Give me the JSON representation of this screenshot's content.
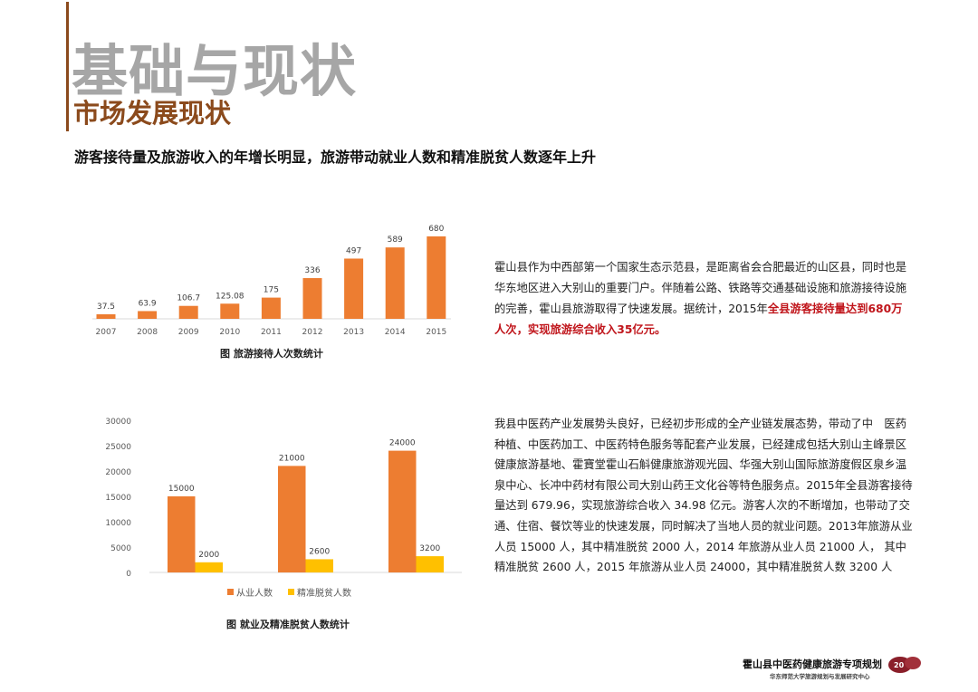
{
  "header": {
    "title": "基础与现状",
    "subtitle": "市场发展现状",
    "headline": "游客接待量及旅游收入的年增长明显，旅游带动就业人数和精准脱贫人数逐年上升"
  },
  "paragraph1": {
    "text": "霍山县作为中西部第一个国家生态示范县，是距离省会合肥最近的山区县，同时也是华东地区进入大别山的重要门户。伴随着公路、铁路等交通基础设施和旅游接待设施的完善，霍山县旅游取得了快速发展。据统计，2015年",
    "highlight": "全县游客接待量达到680万人次，实现旅游综合收入35亿元",
    "end": "。"
  },
  "paragraph2": {
    "text": "我县中医药产业发展势头良好，已经初步形成的全产业链发展态势，带动了中　医药种植、中医药加工、中医药特色服务等配套产业发展，已经建成包括大别山主峰景区健康旅游基地、霍寶堂霍山石斛健康旅游观光园、华强大别山国际旅游度假区泉乡温泉中心、长冲中药材有限公司大别山药王文化谷等特色服务点。2015年全县游客接待量达到 679.96，实现旅游综合收入 34.98 亿元。游客人次的不断增加，也带动了交通、住宿、餐饮等业的快速发展，同时解决了当地人员的就业问题。2013年旅游从业人员 15000 人，其中精准脱贫 2000 人，2014 年旅游从业人员 21000 人， 其中精准脱贫 2600 人，2015 年旅游从业人员 24000，其中精准脱贫人数 3200 人"
  },
  "footer": {
    "title": "霍山县中医药健康旅游专项规划",
    "subtitle": "华东师范大学旅游规划与发展研究中心",
    "logo_text": "20"
  },
  "chart_data": [
    {
      "type": "bar",
      "title": "图 旅游接待人次数统计",
      "categories": [
        "2007",
        "2008",
        "2009",
        "2010",
        "2011",
        "2012",
        "2013",
        "2014",
        "2015"
      ],
      "values": [
        37.5,
        63.9,
        106.7,
        125.08,
        175,
        336,
        497,
        589,
        680
      ],
      "value_labels": [
        "37.5",
        "63.9",
        "106.7",
        "125.08",
        "175",
        "336",
        "497",
        "589",
        "680"
      ],
      "ylim": [
        0,
        680
      ],
      "y_axis_visible": false,
      "grid": false,
      "color": "#ed7d31"
    },
    {
      "type": "bar",
      "title": "图 就业及精准脱贫人数统计",
      "categories": [
        "",
        "",
        ""
      ],
      "series": [
        {
          "name": "从业人数",
          "values": [
            15000,
            21000,
            24000
          ],
          "color": "#ed7d31"
        },
        {
          "name": "精准脱贫人数",
          "values": [
            2000,
            2600,
            3200
          ],
          "color": "#ffc000"
        }
      ],
      "yticks": [
        "0",
        "5000",
        "10000",
        "15000",
        "20000",
        "25000",
        "30000"
      ],
      "ylim": [
        0,
        30000
      ],
      "grid": false,
      "legend": "bottom"
    }
  ]
}
